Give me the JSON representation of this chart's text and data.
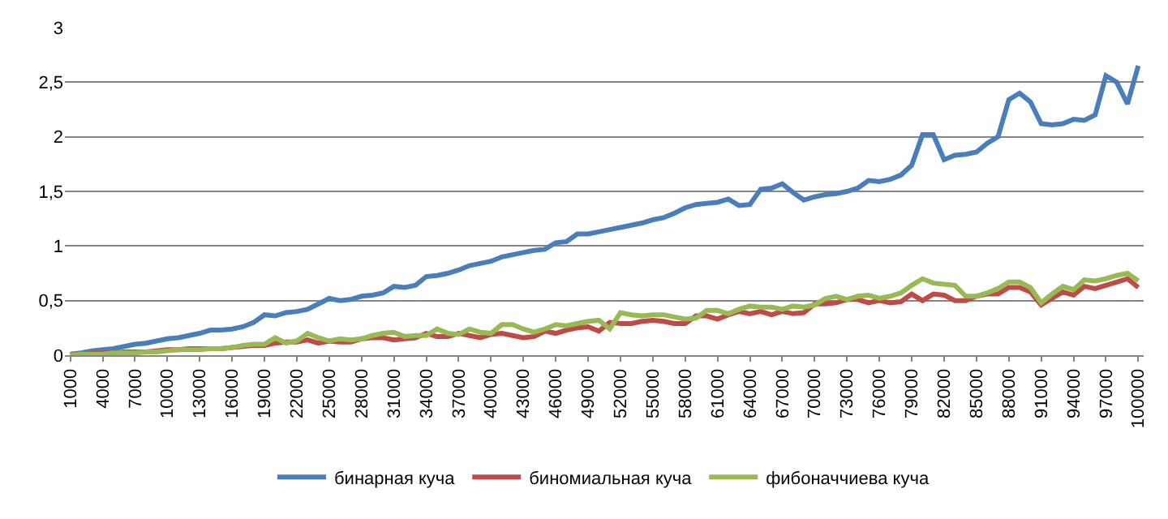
{
  "chart_data": {
    "type": "line",
    "categories": [
      "1000",
      null,
      null,
      "4000",
      null,
      null,
      "7000",
      null,
      null,
      "10000",
      null,
      null,
      "13000",
      null,
      null,
      "16000",
      null,
      null,
      "19000",
      null,
      null,
      "22000",
      null,
      null,
      "25000",
      null,
      null,
      "28000",
      null,
      null,
      "31000",
      null,
      null,
      "34000",
      null,
      null,
      "37000",
      null,
      null,
      "40000",
      null,
      null,
      "43000",
      null,
      null,
      "46000",
      null,
      null,
      "49000",
      null,
      null,
      "52000",
      null,
      null,
      "55000",
      null,
      null,
      "58000",
      null,
      null,
      "61000",
      null,
      null,
      "64000",
      null,
      null,
      "67000",
      null,
      null,
      "70000",
      null,
      null,
      "73000",
      null,
      null,
      "76000",
      null,
      null,
      "79000",
      null,
      null,
      "82000",
      null,
      null,
      "85000",
      null,
      null,
      "88000",
      null,
      null,
      "91000",
      null,
      null,
      "94000",
      null,
      null,
      "97000",
      null,
      null,
      "100000"
    ],
    "series": [
      {
        "name": "бинарная куча",
        "color": "#4a7ebb",
        "values": [
          0.01,
          0.02,
          0.04,
          0.05,
          0.06,
          0.08,
          0.1,
          0.11,
          0.13,
          0.15,
          0.16,
          0.18,
          0.2,
          0.23,
          0.23,
          0.24,
          0.26,
          0.3,
          0.37,
          0.36,
          0.39,
          0.4,
          0.42,
          0.47,
          0.52,
          0.5,
          0.51,
          0.54,
          0.55,
          0.57,
          0.63,
          0.62,
          0.64,
          0.72,
          0.73,
          0.75,
          0.78,
          0.82,
          0.84,
          0.86,
          0.9,
          0.92,
          0.94,
          0.96,
          0.97,
          1.03,
          1.04,
          1.11,
          1.11,
          1.13,
          1.15,
          1.17,
          1.19,
          1.21,
          1.24,
          1.26,
          1.3,
          1.35,
          1.38,
          1.39,
          1.4,
          1.43,
          1.37,
          1.38,
          1.52,
          1.53,
          1.57,
          1.49,
          1.42,
          1.45,
          1.47,
          1.48,
          1.5,
          1.53,
          1.6,
          1.59,
          1.61,
          1.65,
          1.74,
          2.02,
          2.02,
          1.79,
          1.83,
          1.84,
          1.86,
          1.94,
          2.0,
          2.34,
          2.4,
          2.32,
          2.12,
          2.11,
          2.12,
          2.16,
          2.15,
          2.2,
          2.56,
          2.5,
          2.3,
          2.65
        ]
      },
      {
        "name": "биномиальная куча",
        "color": "#be4b48",
        "values": [
          0.0,
          0.01,
          0.02,
          0.02,
          0.02,
          0.03,
          0.03,
          0.03,
          0.04,
          0.05,
          0.05,
          0.06,
          0.06,
          0.06,
          0.06,
          0.07,
          0.08,
          0.09,
          0.09,
          0.11,
          0.12,
          0.12,
          0.14,
          0.11,
          0.13,
          0.12,
          0.12,
          0.15,
          0.16,
          0.16,
          0.14,
          0.15,
          0.16,
          0.2,
          0.17,
          0.17,
          0.2,
          0.18,
          0.16,
          0.19,
          0.2,
          0.18,
          0.16,
          0.17,
          0.22,
          0.2,
          0.23,
          0.25,
          0.26,
          0.22,
          0.3,
          0.29,
          0.29,
          0.31,
          0.32,
          0.31,
          0.29,
          0.29,
          0.36,
          0.36,
          0.33,
          0.37,
          0.4,
          0.38,
          0.4,
          0.37,
          0.4,
          0.38,
          0.39,
          0.47,
          0.47,
          0.48,
          0.51,
          0.51,
          0.48,
          0.5,
          0.48,
          0.49,
          0.56,
          0.5,
          0.56,
          0.55,
          0.5,
          0.5,
          0.54,
          0.56,
          0.56,
          0.62,
          0.62,
          0.58,
          0.46,
          0.52,
          0.58,
          0.55,
          0.63,
          0.61,
          0.64,
          0.67,
          0.7,
          0.62
        ]
      },
      {
        "name": "фибоначчиева куча",
        "color": "#98b954",
        "values": [
          0.0,
          0.01,
          0.01,
          0.01,
          0.02,
          0.02,
          0.02,
          0.03,
          0.03,
          0.04,
          0.05,
          0.05,
          0.05,
          0.06,
          0.06,
          0.07,
          0.09,
          0.1,
          0.1,
          0.16,
          0.11,
          0.13,
          0.2,
          0.16,
          0.13,
          0.15,
          0.14,
          0.15,
          0.18,
          0.2,
          0.21,
          0.17,
          0.18,
          0.18,
          0.24,
          0.2,
          0.19,
          0.24,
          0.21,
          0.2,
          0.28,
          0.28,
          0.24,
          0.21,
          0.24,
          0.28,
          0.27,
          0.29,
          0.31,
          0.32,
          0.24,
          0.39,
          0.37,
          0.36,
          0.37,
          0.37,
          0.35,
          0.33,
          0.34,
          0.41,
          0.41,
          0.38,
          0.42,
          0.45,
          0.44,
          0.44,
          0.42,
          0.45,
          0.44,
          0.46,
          0.52,
          0.54,
          0.51,
          0.54,
          0.55,
          0.52,
          0.54,
          0.57,
          0.64,
          0.7,
          0.66,
          0.65,
          0.64,
          0.54,
          0.54,
          0.57,
          0.61,
          0.67,
          0.67,
          0.62,
          0.48,
          0.56,
          0.63,
          0.6,
          0.69,
          0.68,
          0.7,
          0.73,
          0.75,
          0.68
        ]
      }
    ],
    "ylim": [
      0,
      3
    ],
    "yticks": [
      0,
      {
        "value": 0.5,
        "label": "0,5"
      },
      1,
      {
        "value": 1.5,
        "label": "1,5"
      },
      2,
      {
        "value": 2.5,
        "label": "2,5"
      },
      3
    ],
    "grid": "y",
    "legend": "bottom",
    "marker": "none",
    "line_style": "solid"
  }
}
